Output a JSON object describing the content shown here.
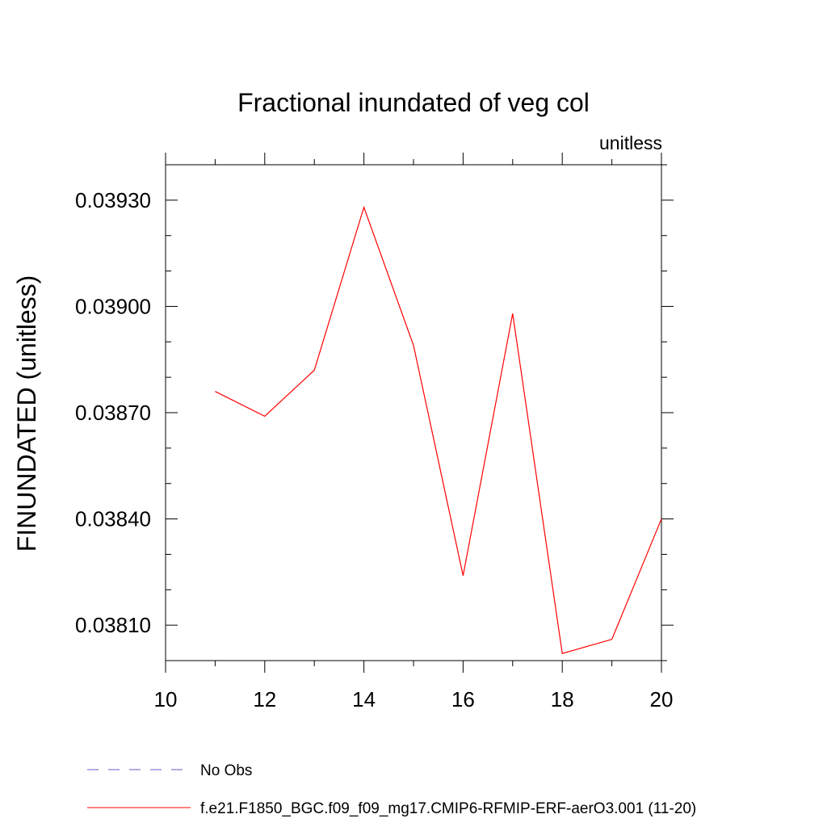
{
  "chart_data": {
    "type": "line",
    "title": "Fractional inundated of veg col",
    "units_label": "unitless",
    "ylabel": "FINUNDATED  (unitless)",
    "xlabel": "",
    "xlim": [
      10,
      20
    ],
    "ylim": [
      0.038,
      0.0394
    ],
    "x_ticks": [
      10,
      12,
      14,
      16,
      18,
      20
    ],
    "x_tick_labels": [
      "10",
      "12",
      "14",
      "16",
      "18",
      "20"
    ],
    "x_minor_step": 1,
    "y_ticks": [
      0.0381,
      0.0384,
      0.0387,
      0.039,
      0.0393
    ],
    "y_tick_labels": [
      "0.03810",
      "0.03840",
      "0.03870",
      "0.03900",
      "0.03930"
    ],
    "y_minor_step": 0.0001,
    "grid": false,
    "legend_position": "bottom",
    "series": [
      {
        "name": "f.e21.F1850_BGC.f09_f09_mg17.CMIP6-RFMIP-ERF-aerO3.001 (11-20)",
        "color": "#ff0000",
        "style": "solid",
        "x": [
          11,
          12,
          13,
          14,
          15,
          16,
          17,
          18,
          19,
          20
        ],
        "values": [
          0.03876,
          0.03869,
          0.03882,
          0.03928,
          0.03889,
          0.03824,
          0.03898,
          0.03802,
          0.03806,
          0.0384
        ]
      }
    ],
    "legend": [
      {
        "label": "No Obs",
        "color": "#6a5acd",
        "style": "dashed"
      },
      {
        "label": "f.e21.F1850_BGC.f09_f09_mg17.CMIP6-RFMIP-ERF-aerO3.001 (11-20)",
        "color": "#ff0000",
        "style": "solid"
      }
    ]
  }
}
